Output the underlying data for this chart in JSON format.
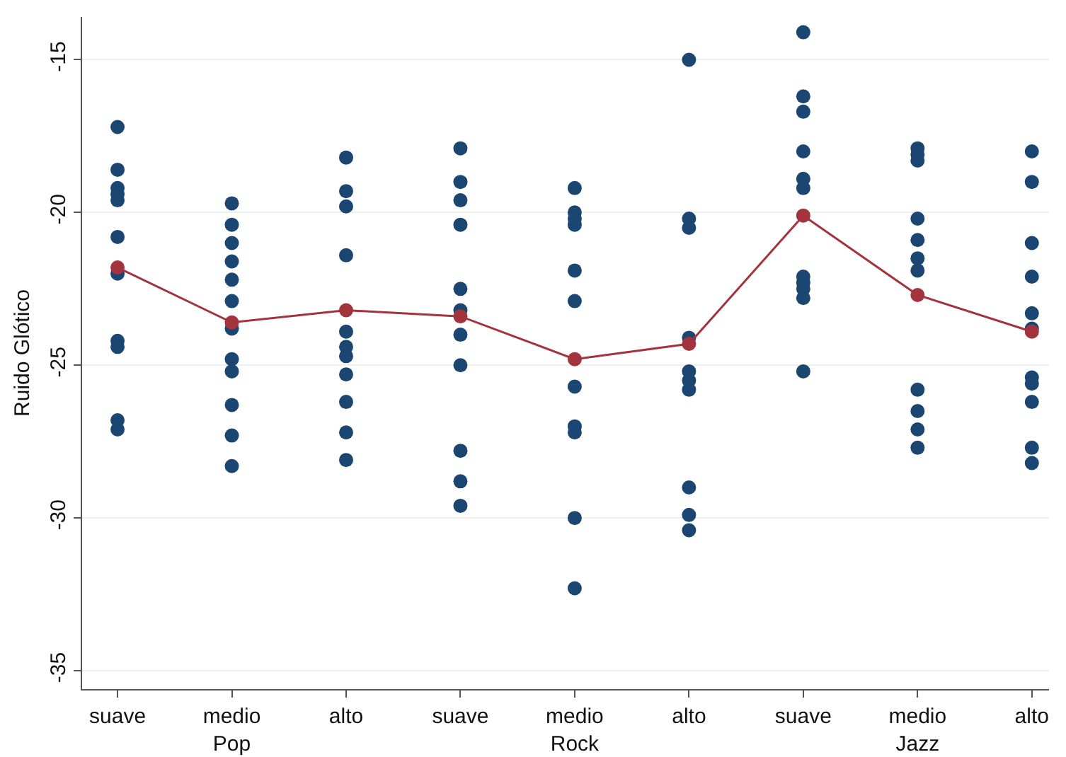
{
  "chart_data": {
    "type": "scatter",
    "ylabel": "Ruido Glótico",
    "categories": [
      "suave",
      "medio\nPop",
      "alto",
      "suave",
      "medio\nRock",
      "alto",
      "suave",
      "medio\nJazz",
      "alto"
    ],
    "ylim": [
      -35.6,
      -13.6
    ],
    "yticks": [
      -35,
      -30,
      -25,
      -20,
      -15
    ],
    "grid": "y",
    "marker": "circle",
    "series": [
      {
        "color": "#1b4671",
        "values": [
          -17.2,
          -19.7,
          -18.2,
          -17.9,
          -19.2,
          -15.0,
          -14.1,
          -17.9,
          -18.0
        ]
      },
      {
        "color": "#1b4671",
        "values": [
          -18.6,
          -20.4,
          -19.3,
          -19.0,
          -20.0,
          -20.2,
          -16.2,
          -18.1,
          -19.0
        ]
      },
      {
        "color": "#1b4671",
        "values": [
          -19.2,
          -21.0,
          -19.8,
          -19.6,
          -20.2,
          -20.5,
          -16.7,
          -18.3,
          -21.0
        ]
      },
      {
        "color": "#1b4671",
        "values": [
          -19.4,
          -21.6,
          -21.4,
          -20.4,
          -20.4,
          -24.1,
          -18.0,
          -20.2,
          -22.1
        ]
      },
      {
        "color": "#1b4671",
        "values": [
          -19.6,
          -22.2,
          -23.9,
          -22.5,
          -21.9,
          -25.2,
          -18.9,
          -20.9,
          -23.3
        ]
      },
      {
        "color": "#1b4671",
        "values": [
          -20.8,
          -22.9,
          -24.4,
          -23.2,
          -22.9,
          -25.5,
          -19.2,
          -21.5,
          -23.8
        ]
      },
      {
        "color": "#1b4671",
        "values": [
          -22.0,
          -23.8,
          -24.7,
          -24.0,
          -25.7,
          -25.8,
          -22.1,
          -21.9,
          -25.4
        ]
      },
      {
        "color": "#1b4671",
        "values": [
          -24.2,
          -24.8,
          -25.3,
          -25.0,
          -27.0,
          -29.0,
          -22.3,
          -25.8,
          -25.6
        ]
      },
      {
        "color": "#1b4671",
        "values": [
          -24.4,
          -25.2,
          -26.2,
          -27.8,
          -27.2,
          -29.9,
          -22.5,
          -26.5,
          -26.2
        ]
      },
      {
        "color": "#1b4671",
        "values": [
          -26.8,
          -26.3,
          -27.2,
          -28.8,
          -30.0,
          -30.4,
          -22.8,
          -27.1,
          -27.7
        ]
      },
      {
        "color": "#1b4671",
        "values": [
          -27.1,
          -27.3,
          -28.1,
          -29.6,
          -32.3,
          null,
          -25.2,
          -27.7,
          -28.2
        ]
      },
      {
        "color": "#1b4671",
        "values": [
          null,
          -28.3,
          null,
          null,
          null,
          null,
          null,
          null,
          null
        ]
      },
      {
        "type": "line",
        "color": "#a3333d",
        "values": [
          -21.8,
          -23.6,
          -23.2,
          -23.4,
          -24.8,
          -24.3,
          -20.1,
          -22.7,
          -23.9
        ]
      }
    ]
  }
}
